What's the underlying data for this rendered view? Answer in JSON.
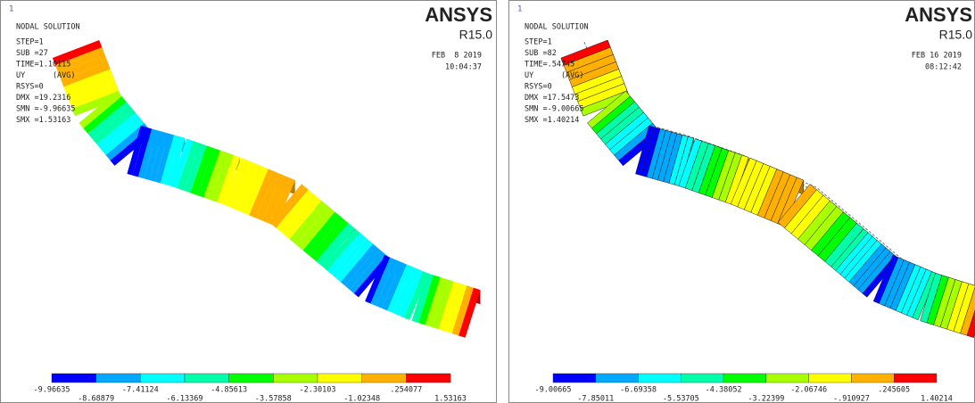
{
  "panels": [
    {
      "corner": "1",
      "title": "NODAL SOLUTION",
      "info": [
        "STEP=1",
        "SUB =27",
        "TIME=1.10115",
        "UY      (AVG)",
        "RSYS=0",
        "DMX =19.2316",
        "SMN =-9.96635",
        "SMX =1.53163"
      ],
      "logo": "ANSYS",
      "version": "R15.0",
      "date": "FEB  8 2019",
      "time": "10:04:37",
      "legend": [
        "-9.96635",
        "-8.68879",
        "-7.41124",
        "-6.13369",
        "-4.85613",
        "-3.57858",
        "-2.30103",
        "-1.02348",
        ".254077",
        "1.53163"
      ]
    },
    {
      "corner": "1",
      "title": "NODAL SOLUTION",
      "info": [
        "STEP=1",
        "SUB =82",
        "TIME=.54745",
        "UY      (AVG)",
        "RSYS=0",
        "DMX =17.5473",
        "SMN =-9.00665",
        "SMX =1.40214"
      ],
      "logo": "ANSYS",
      "version": "R15.0",
      "date": "FEB 16 2019",
      "time": "08:12:42",
      "legend": [
        "-9.00665",
        "-7.85011",
        "-6.69358",
        "-5.53705",
        "-4.38052",
        "-3.22399",
        "-2.06746",
        "-.910927",
        ".245605",
        "1.40214"
      ]
    }
  ]
}
